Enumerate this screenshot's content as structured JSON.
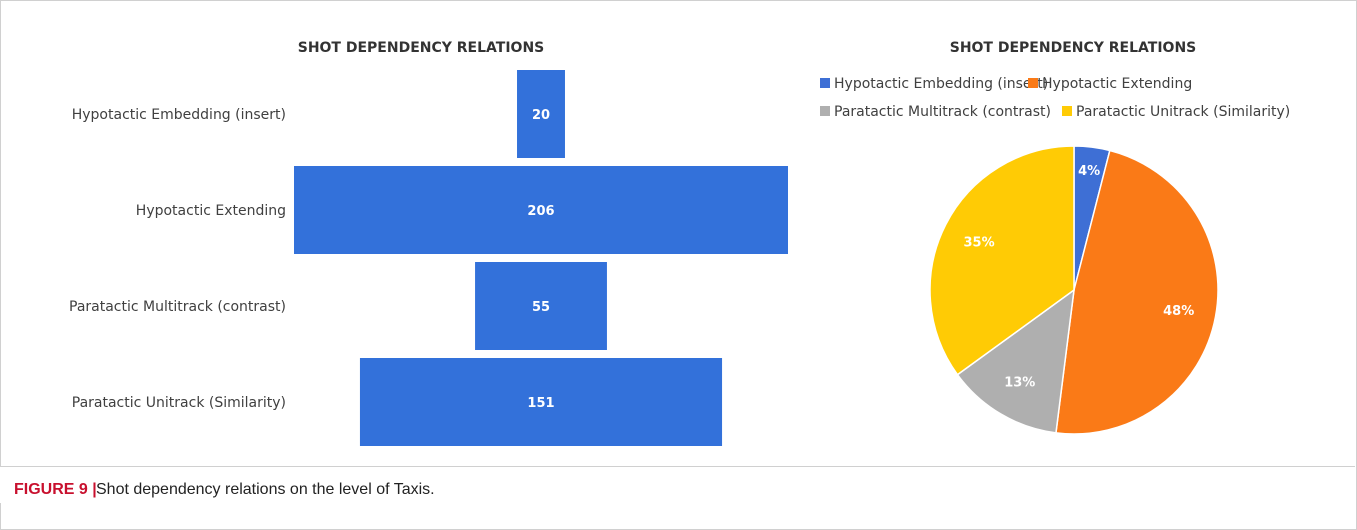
{
  "colors": {
    "bar": "#3371DA",
    "embedding": "#3E6FD5",
    "extending": "#FA7A17",
    "multitrack": "#AFAFAF",
    "unitrack": "#FFCB05",
    "figure_label": "#C8102E"
  },
  "chart_data": [
    {
      "type": "bar",
      "orientation": "horizontal",
      "alignment": "centered",
      "title": "SHOT DEPENDENCY RELATIONS",
      "categories": [
        "Hypotactic Embedding (insert)",
        "Hypotactic Extending",
        "Paratactic Multitrack (contrast)",
        "Paratactic Unitrack (Similarity)"
      ],
      "values": [
        20,
        206,
        55,
        151
      ],
      "grid": false
    },
    {
      "type": "pie",
      "title": "SHOT DEPENDENCY RELATIONS",
      "legend_position": "top",
      "slices": [
        {
          "label": "Hypotactic Embedding (insert)",
          "value": 4,
          "display": "4%",
          "color_key": "embedding"
        },
        {
          "label": "Hypotactic Extending",
          "value": 48,
          "display": "48%",
          "color_key": "extending"
        },
        {
          "label": "Paratactic Multitrack (contrast)",
          "value": 13,
          "display": "13%",
          "color_key": "multitrack"
        },
        {
          "label": "Paratactic Unitrack (Similarity)",
          "value": 35,
          "display": "35%",
          "color_key": "unitrack"
        }
      ]
    }
  ],
  "caption": {
    "label": "FIGURE 9 |",
    "text": "Shot dependency relations on the level of Taxis."
  }
}
